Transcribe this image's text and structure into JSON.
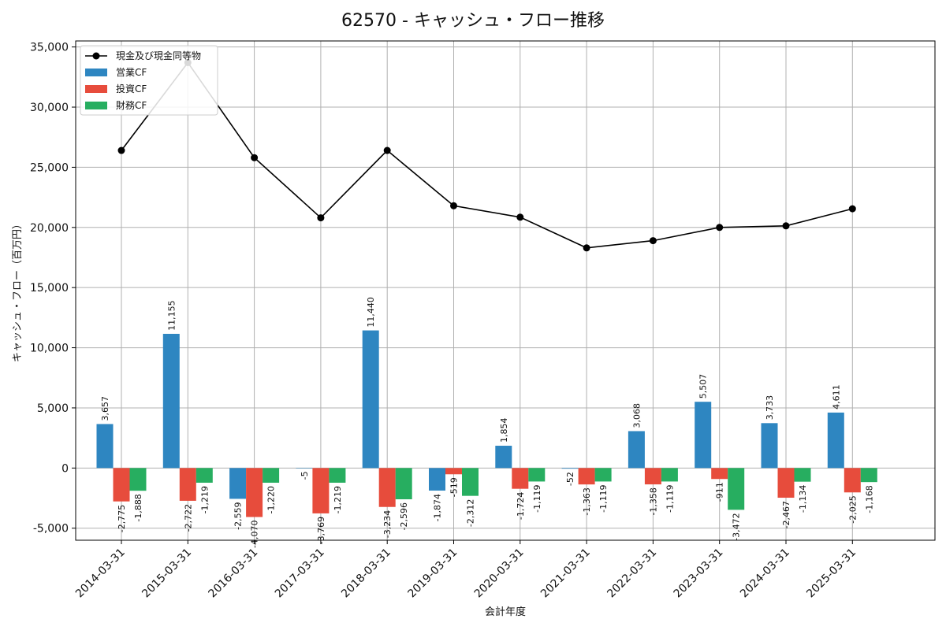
{
  "chart_data": {
    "type": "bar",
    "title": "62570 - キャッシュ・フロー推移",
    "xlabel": "会計年度",
    "ylabel": "キャッシュ・フロー（百万円）",
    "ylim": [
      -6000,
      35500
    ],
    "yticks": [
      -5000,
      0,
      5000,
      10000,
      15000,
      20000,
      25000,
      30000,
      35000
    ],
    "ytick_labels": [
      "-5,000",
      "0",
      "5,000",
      "10,000",
      "15,000",
      "20,000",
      "25,000",
      "30,000",
      "35,000"
    ],
    "categories": [
      "2014-03-31",
      "2015-03-31",
      "2016-03-31",
      "2017-03-31",
      "2018-03-31",
      "2019-03-31",
      "2020-03-31",
      "2021-03-31",
      "2022-03-31",
      "2023-03-31",
      "2024-03-31",
      "2025-03-31"
    ],
    "grid": true,
    "legend_position": "top-left",
    "series": [
      {
        "name": "営業CF",
        "kind": "bar",
        "color": "#2e86c1",
        "values": [
          3657,
          11155,
          -2559,
          -5,
          11440,
          -1874,
          1854,
          -52,
          3068,
          5507,
          3733,
          4611
        ],
        "labels": [
          "3,657",
          "11,155",
          "-2,559",
          "-5",
          "11,440",
          "-1,874",
          "1,854",
          "-52",
          "3,068",
          "5,507",
          "3,733",
          "4,611"
        ]
      },
      {
        "name": "投資CF",
        "kind": "bar",
        "color": "#e74c3c",
        "values": [
          -2775,
          -2722,
          -4070,
          -3769,
          -3234,
          -519,
          -1724,
          -1363,
          -1358,
          -911,
          -2467,
          -2025
        ],
        "labels": [
          "-2,775",
          "-2,722",
          "-4,070",
          "-3,769",
          "-3,234",
          "-519",
          "-1,724",
          "-1,363",
          "-1,358",
          "-911",
          "-2,467",
          "-2,025"
        ]
      },
      {
        "name": "財務CF",
        "kind": "bar",
        "color": "#27ae60",
        "values": [
          -1888,
          -1219,
          -1220,
          -1219,
          -2596,
          -2312,
          -1119,
          -1119,
          -1119,
          -3472,
          -1134,
          -1168
        ],
        "labels": [
          "-1,888",
          "-1,219",
          "-1,220",
          "-1,219",
          "-2,596",
          "-2,312",
          "-1,119",
          "-1,119",
          "-1,119",
          "-3,472",
          "-1,134",
          "-1,168"
        ]
      },
      {
        "name": "現金及び現金同等物",
        "kind": "line",
        "color": "#000000",
        "values": [
          26400,
          33700,
          25800,
          20800,
          26400,
          21800,
          20850,
          18300,
          18900,
          20000,
          20130,
          21550
        ]
      }
    ]
  }
}
